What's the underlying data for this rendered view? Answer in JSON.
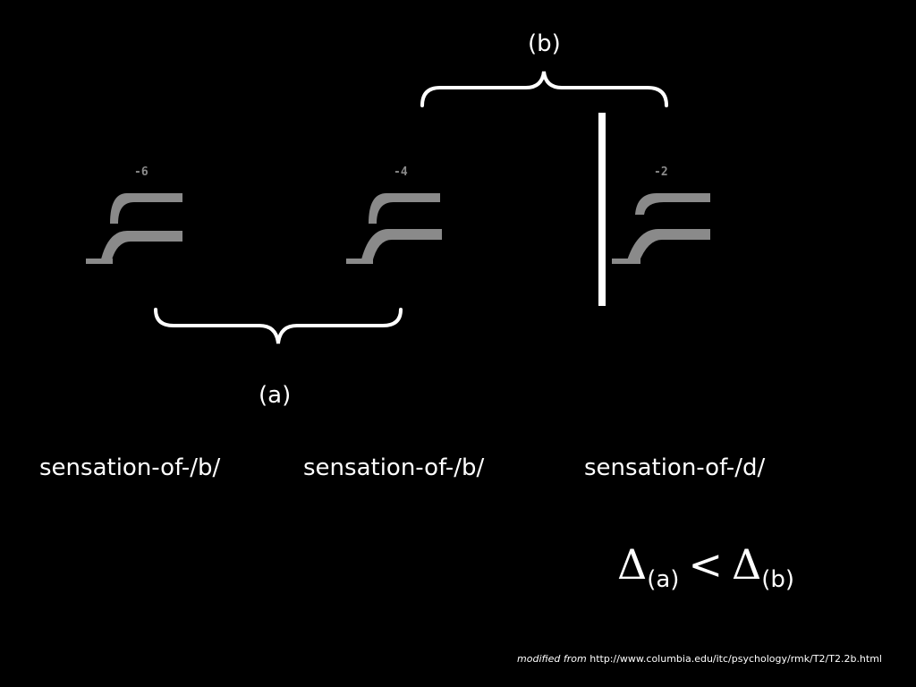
{
  "labels": {
    "bracket_b": "(b)",
    "bracket_a": "(a)"
  },
  "stimuli": [
    {
      "step": "-6",
      "caption": "sensation-of-/b/"
    },
    {
      "step": "-4",
      "caption": "sensation-of-/b/"
    },
    {
      "step": "-2",
      "caption": "sensation-of-/d/"
    }
  ],
  "formula": {
    "symbol_left": "Δ",
    "sub_left": "(a)",
    "operator": "<",
    "symbol_right": "Δ",
    "sub_right": "(b)"
  },
  "credit": {
    "prefix": "modified from",
    "url": "http://www.columbia.edu/itc/psychology/rmk/T2/T2.2b.html"
  },
  "colors": {
    "background": "#000000",
    "foreground": "#ffffff",
    "spectrogram": "#8a8a8a"
  }
}
